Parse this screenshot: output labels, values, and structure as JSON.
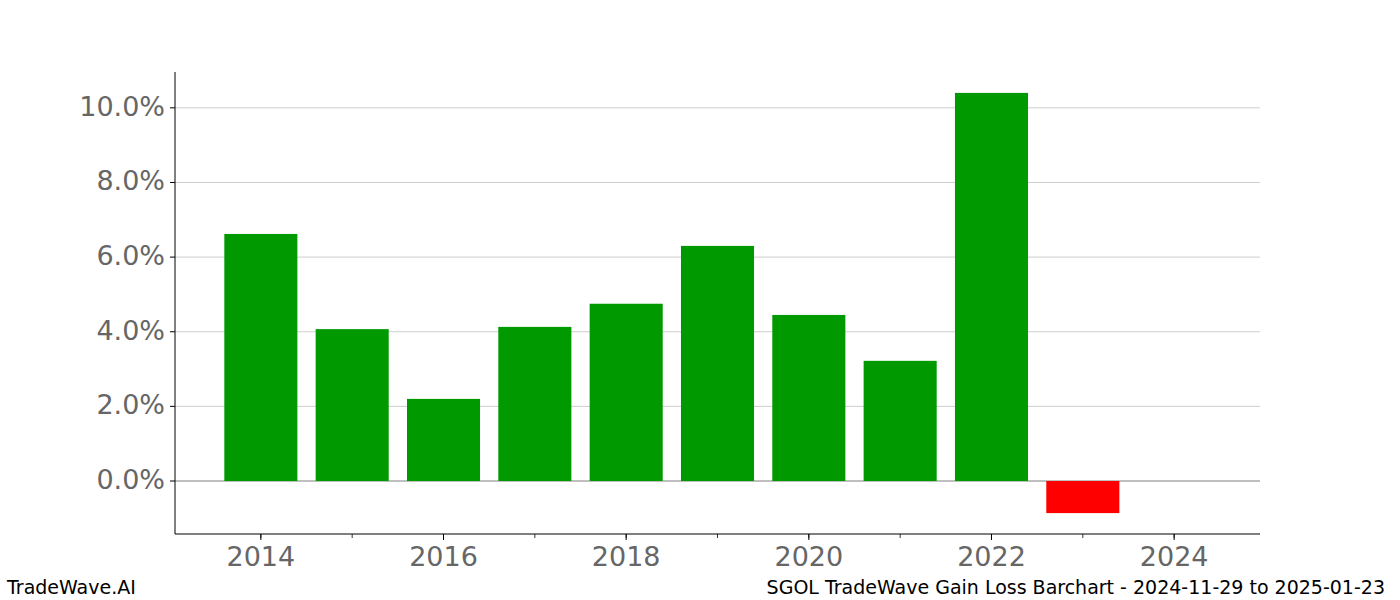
{
  "chart_data": {
    "type": "bar",
    "title": "SGOL TradeWave Gain Loss Barchart - 2024-11-29 to 2025-01-23",
    "subtitle": "TradeWave.AI",
    "x": [
      2014,
      2015,
      2016,
      2017,
      2018,
      2019,
      2020,
      2021,
      2022,
      2023,
      2024
    ],
    "values": [
      6.62,
      4.07,
      2.2,
      4.13,
      4.75,
      6.3,
      4.45,
      3.22,
      10.4,
      -0.86,
      0
    ],
    "colors": [
      "#009900",
      "#009900",
      "#009900",
      "#009900",
      "#009900",
      "#009900",
      "#009900",
      "#009900",
      "#009900",
      "#ff0000",
      "#009900"
    ],
    "xlim": [
      2013.06,
      2024.94
    ],
    "xticks": [
      2014,
      2016,
      2018,
      2020,
      2022,
      2024
    ],
    "ylim": [
      -1.42,
      10.96
    ],
    "yticks": [
      {
        "value": 0,
        "label": "0.0%"
      },
      {
        "value": 2,
        "label": "2.0%"
      },
      {
        "value": 4,
        "label": "4.0%"
      },
      {
        "value": 6,
        "label": "6.0%"
      },
      {
        "value": 8,
        "label": "8.0%"
      },
      {
        "value": 10,
        "label": "10.0%"
      }
    ],
    "grid": true
  }
}
